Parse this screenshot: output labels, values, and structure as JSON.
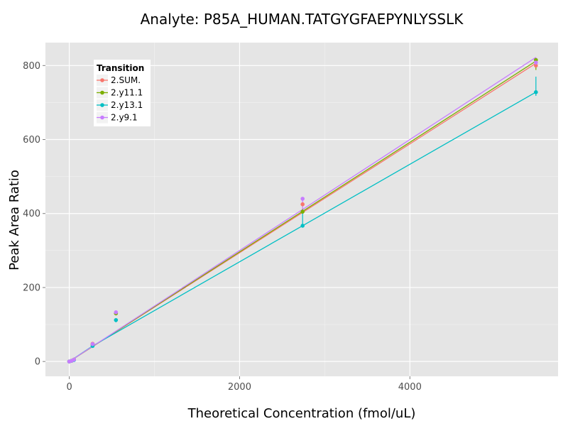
{
  "chart_data": {
    "type": "scatter",
    "title": "Analyte: P85A_HUMAN.TATGYGFAEPYNLYSSLK",
    "xlabel": "Theoretical Concentration (fmol/uL)",
    "ylabel": "Peak Area Ratio",
    "xlim": [
      -280,
      5740
    ],
    "ylim": [
      -40,
      862
    ],
    "xticks": [
      0,
      2000,
      4000
    ],
    "yticks": [
      0,
      200,
      400,
      600,
      800
    ],
    "grid": true,
    "legend": {
      "title": "Transition",
      "position": "top-left-inside"
    },
    "series": [
      {
        "name": "2.SUM.",
        "color": "#F8766D",
        "points": [
          {
            "x": 0,
            "y": 0
          },
          {
            "x": 27,
            "y": 2
          },
          {
            "x": 55,
            "y": 5
          },
          {
            "x": 274,
            "y": 48
          },
          {
            "x": 548,
            "y": 131
          },
          {
            "x": 2740,
            "y": 425
          },
          {
            "x": 5480,
            "y": 800
          }
        ],
        "fit": [
          {
            "x": 0,
            "y": 0
          },
          {
            "x": 5480,
            "y": 806
          }
        ],
        "range": [
          {
            "x": 548,
            "lo": 128,
            "hi": 134
          },
          {
            "x": 2740,
            "lo": 418,
            "hi": 428
          },
          {
            "x": 5480,
            "lo": 790,
            "hi": 810
          }
        ]
      },
      {
        "name": "2.y11.1",
        "color": "#7CAE00",
        "points": [
          {
            "x": 0,
            "y": 0
          },
          {
            "x": 27,
            "y": 2
          },
          {
            "x": 55,
            "y": 5
          },
          {
            "x": 274,
            "y": 46
          },
          {
            "x": 548,
            "y": 130
          },
          {
            "x": 2740,
            "y": 405
          },
          {
            "x": 5480,
            "y": 815
          }
        ],
        "fit": [
          {
            "x": 0,
            "y": 0
          },
          {
            "x": 5480,
            "y": 812
          }
        ],
        "range": [
          {
            "x": 2740,
            "lo": 400,
            "hi": 412
          },
          {
            "x": 5480,
            "lo": 788,
            "hi": 818
          }
        ]
      },
      {
        "name": "2.y13.1",
        "color": "#00BFC4",
        "points": [
          {
            "x": 0,
            "y": 0
          },
          {
            "x": 27,
            "y": 2
          },
          {
            "x": 55,
            "y": 4
          },
          {
            "x": 274,
            "y": 42
          },
          {
            "x": 548,
            "y": 112
          },
          {
            "x": 2740,
            "y": 367
          },
          {
            "x": 5480,
            "y": 728
          }
        ],
        "fit": [
          {
            "x": 0,
            "y": 0
          },
          {
            "x": 274,
            "y": 42
          },
          {
            "x": 2740,
            "y": 367
          },
          {
            "x": 5480,
            "y": 728
          }
        ],
        "range": [
          {
            "x": 548,
            "lo": 106,
            "hi": 115
          },
          {
            "x": 2740,
            "lo": 365,
            "hi": 410
          },
          {
            "x": 5480,
            "lo": 718,
            "hi": 770
          }
        ]
      },
      {
        "name": "2.y9.1",
        "color": "#C77CFF",
        "points": [
          {
            "x": 0,
            "y": 0
          },
          {
            "x": 27,
            "y": 2
          },
          {
            "x": 55,
            "y": 5
          },
          {
            "x": 274,
            "y": 47
          },
          {
            "x": 548,
            "y": 133
          },
          {
            "x": 2740,
            "y": 440
          },
          {
            "x": 5480,
            "y": 808
          }
        ],
        "fit": [
          {
            "x": 0,
            "y": 0
          },
          {
            "x": 5480,
            "y": 822
          }
        ],
        "range": [
          {
            "x": 2740,
            "lo": 412,
            "hi": 442
          },
          {
            "x": 5480,
            "lo": 800,
            "hi": 822
          }
        ]
      }
    ]
  }
}
